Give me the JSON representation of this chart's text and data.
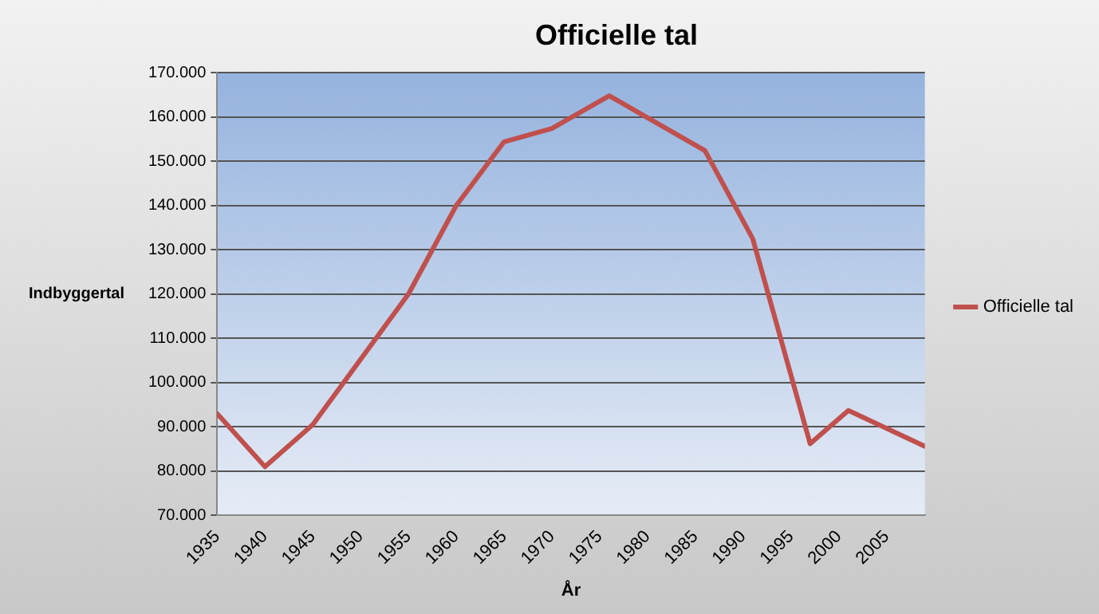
{
  "chart_data": {
    "type": "line",
    "title": "Officielle tal",
    "xlabel": "År",
    "ylabel": "Indbyggertal",
    "x": [
      1935,
      1940,
      1945,
      1955,
      1960,
      1965,
      1970,
      1976,
      1986,
      1991,
      1997,
      2001,
      2009
    ],
    "series": [
      {
        "name": "Officielle tal",
        "color": "#c0504d",
        "values": [
          93000,
          81000,
          90500,
          120000,
          140000,
          154400,
          157400,
          164800,
          152400,
          132500,
          86200,
          93700,
          85600
        ]
      }
    ],
    "xlim": [
      1935,
      2009
    ],
    "xticks": [
      1935,
      1940,
      1945,
      1950,
      1955,
      1960,
      1965,
      1970,
      1975,
      1980,
      1985,
      1990,
      1995,
      2000,
      2005
    ],
    "ylim": [
      70000,
      170000
    ],
    "yticks": [
      {
        "value": 70000,
        "label": "70.000"
      },
      {
        "value": 80000,
        "label": "80.000"
      },
      {
        "value": 90000,
        "label": "90.000"
      },
      {
        "value": 100000,
        "label": "100.000"
      },
      {
        "value": 110000,
        "label": "110.000"
      },
      {
        "value": 120000,
        "label": "120.000"
      },
      {
        "value": 130000,
        "label": "130.000"
      },
      {
        "value": 140000,
        "label": "140.000"
      },
      {
        "value": 150000,
        "label": "150.000"
      },
      {
        "value": 160000,
        "label": "160.000"
      },
      {
        "value": 170000,
        "label": "170.000"
      }
    ],
    "grid": "y",
    "legend": "right",
    "marker": "none",
    "line_style": "solid"
  }
}
